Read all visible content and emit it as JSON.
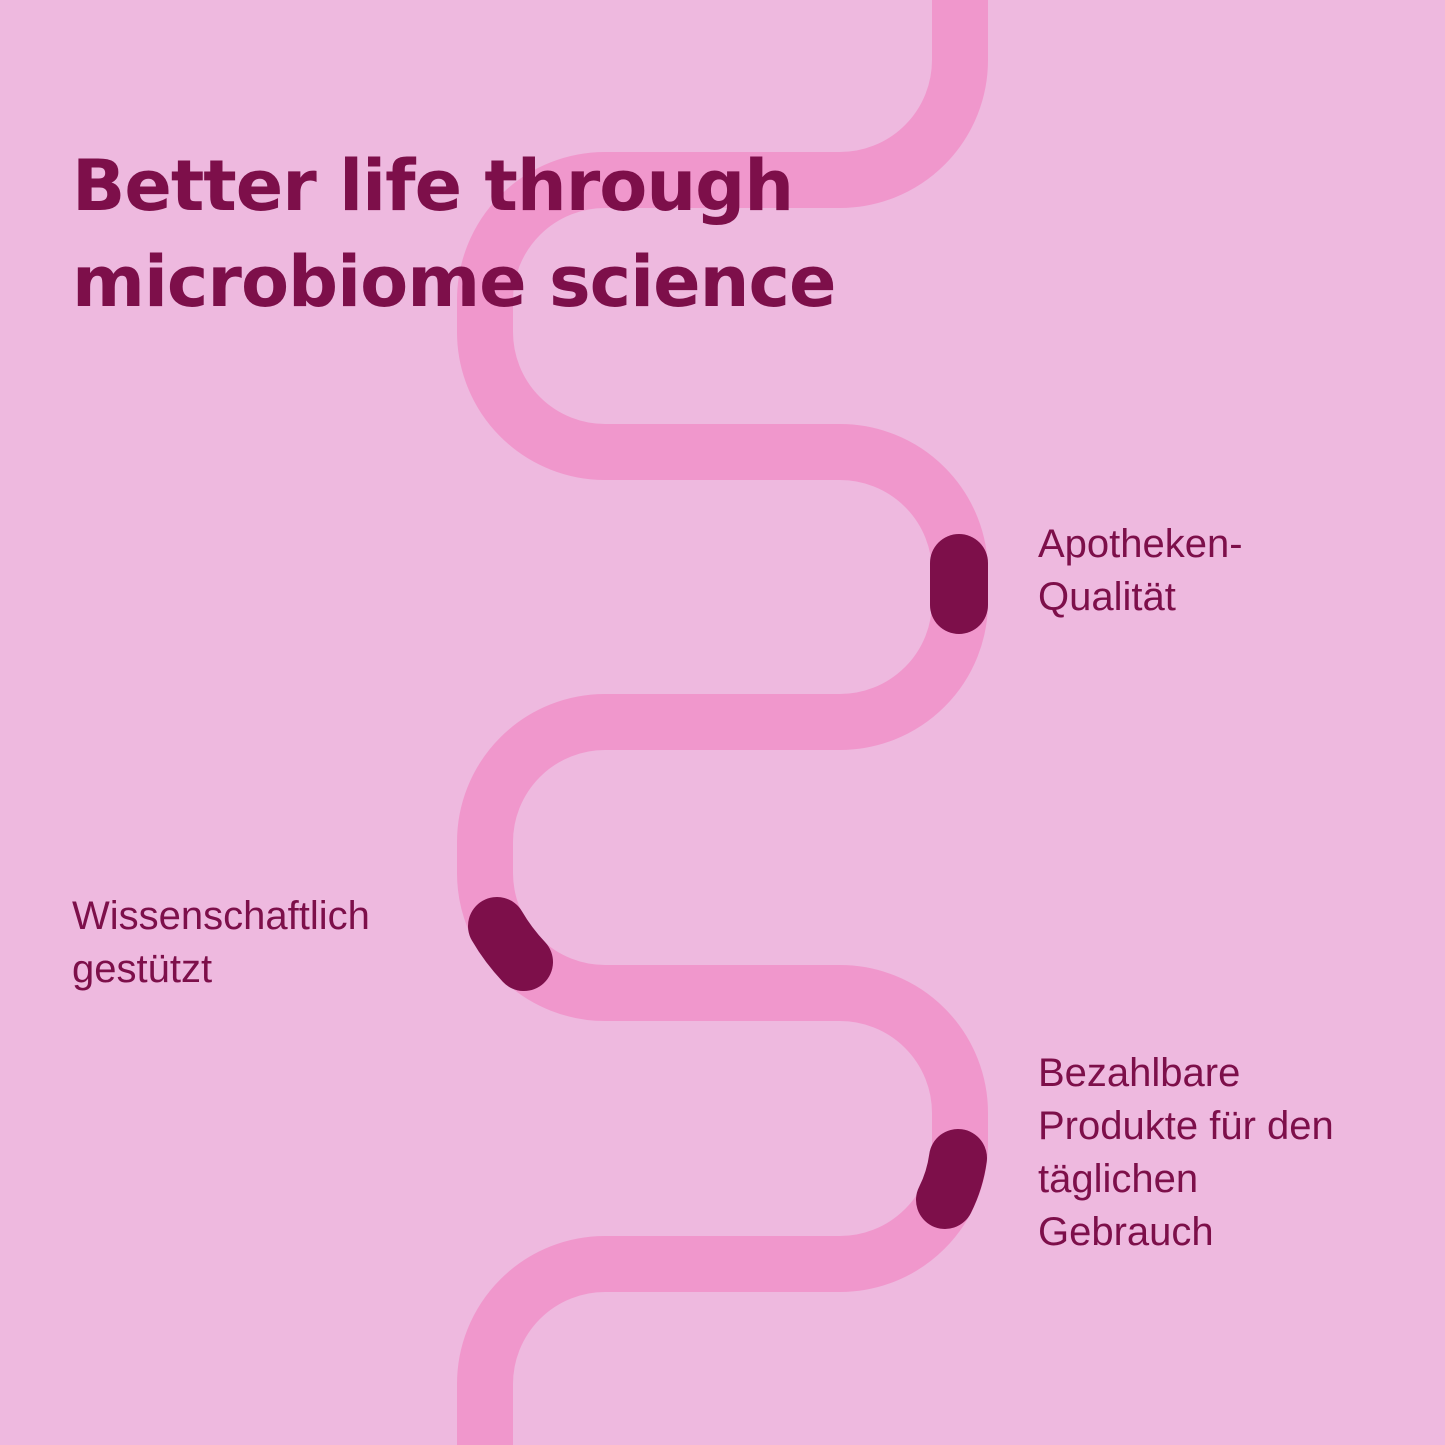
{
  "title": "Better life through\nmicrobiome science",
  "labels": [
    {
      "text": "Apotheken-\nQualität"
    },
    {
      "text": "Wissenschaftlich\ngestützt"
    },
    {
      "text": "Bezahlbare\nProdukte für den\ntäglichen\nGebrauch"
    }
  ],
  "colors": {
    "background": "#EEB9DF",
    "path": "#F097CC",
    "accent": "#7D0F4A"
  }
}
